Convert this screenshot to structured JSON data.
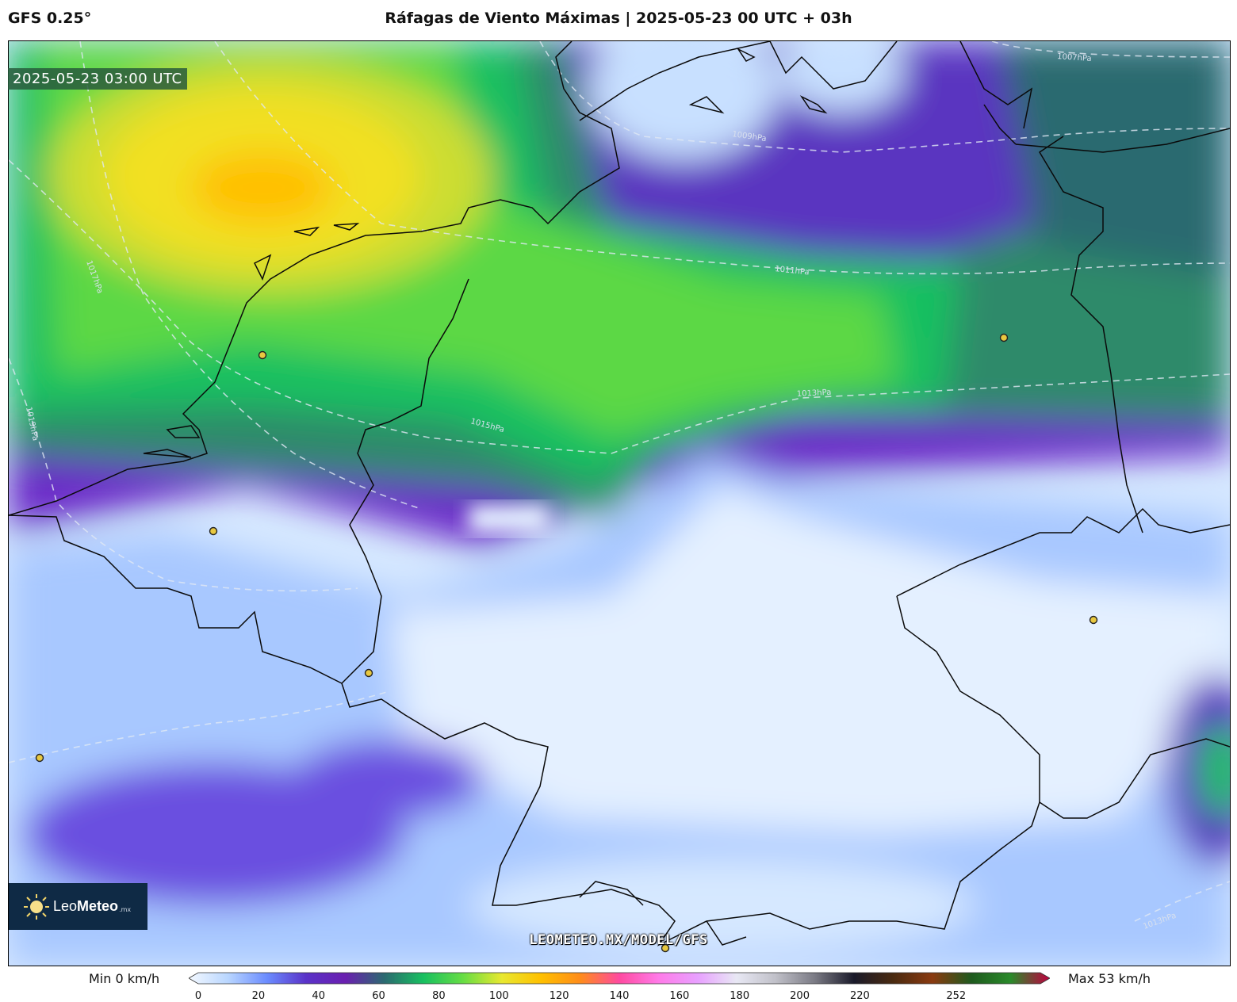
{
  "header": {
    "model": "GFS 0.25°",
    "title": "Ráfagas de Viento Máximas | 2025-05-23 00 UTC + 03h"
  },
  "map": {
    "timestamp": "2025-05-23 03:00 UTC",
    "isobars": [
      "1007hPa",
      "1009hPa",
      "1011hPa",
      "1013hPa",
      "1015hPa",
      "1017hPa",
      "1019hPa",
      "1013hPa"
    ],
    "city_marker_color": "#e8c840"
  },
  "logo": {
    "brand_light": "Leo",
    "brand_bold": "Meteo",
    "tld": ".mx"
  },
  "watermark": "LEOMETEO.MX/MODEL/GFS",
  "colorbar": {
    "min_label": "Min 0 km/h",
    "max_label": "Max 53 km/h",
    "ticks": [
      "0",
      "20",
      "40",
      "60",
      "80",
      "100",
      "120",
      "140",
      "160",
      "180",
      "200",
      "220",
      "252"
    ],
    "tick_values": [
      0,
      20,
      40,
      60,
      80,
      100,
      120,
      140,
      160,
      180,
      200,
      220,
      252
    ],
    "range": [
      0,
      280
    ],
    "colors": [
      "#f4f9ff",
      "#b9d6ff",
      "#6b8cff",
      "#5a32c8",
      "#6a1fb0",
      "#2b6a70",
      "#18c060",
      "#66dd44",
      "#e8e830",
      "#ffc000",
      "#ff8c1a",
      "#ff4aa0",
      "#ff7ae8",
      "#e8a0ff",
      "#e8e8f4",
      "#c0c0c8",
      "#7a7a84",
      "#1a1a2a",
      "#4a2a10",
      "#8a3a10",
      "#1e5a1e",
      "#2a8a2a",
      "#c00040"
    ]
  }
}
